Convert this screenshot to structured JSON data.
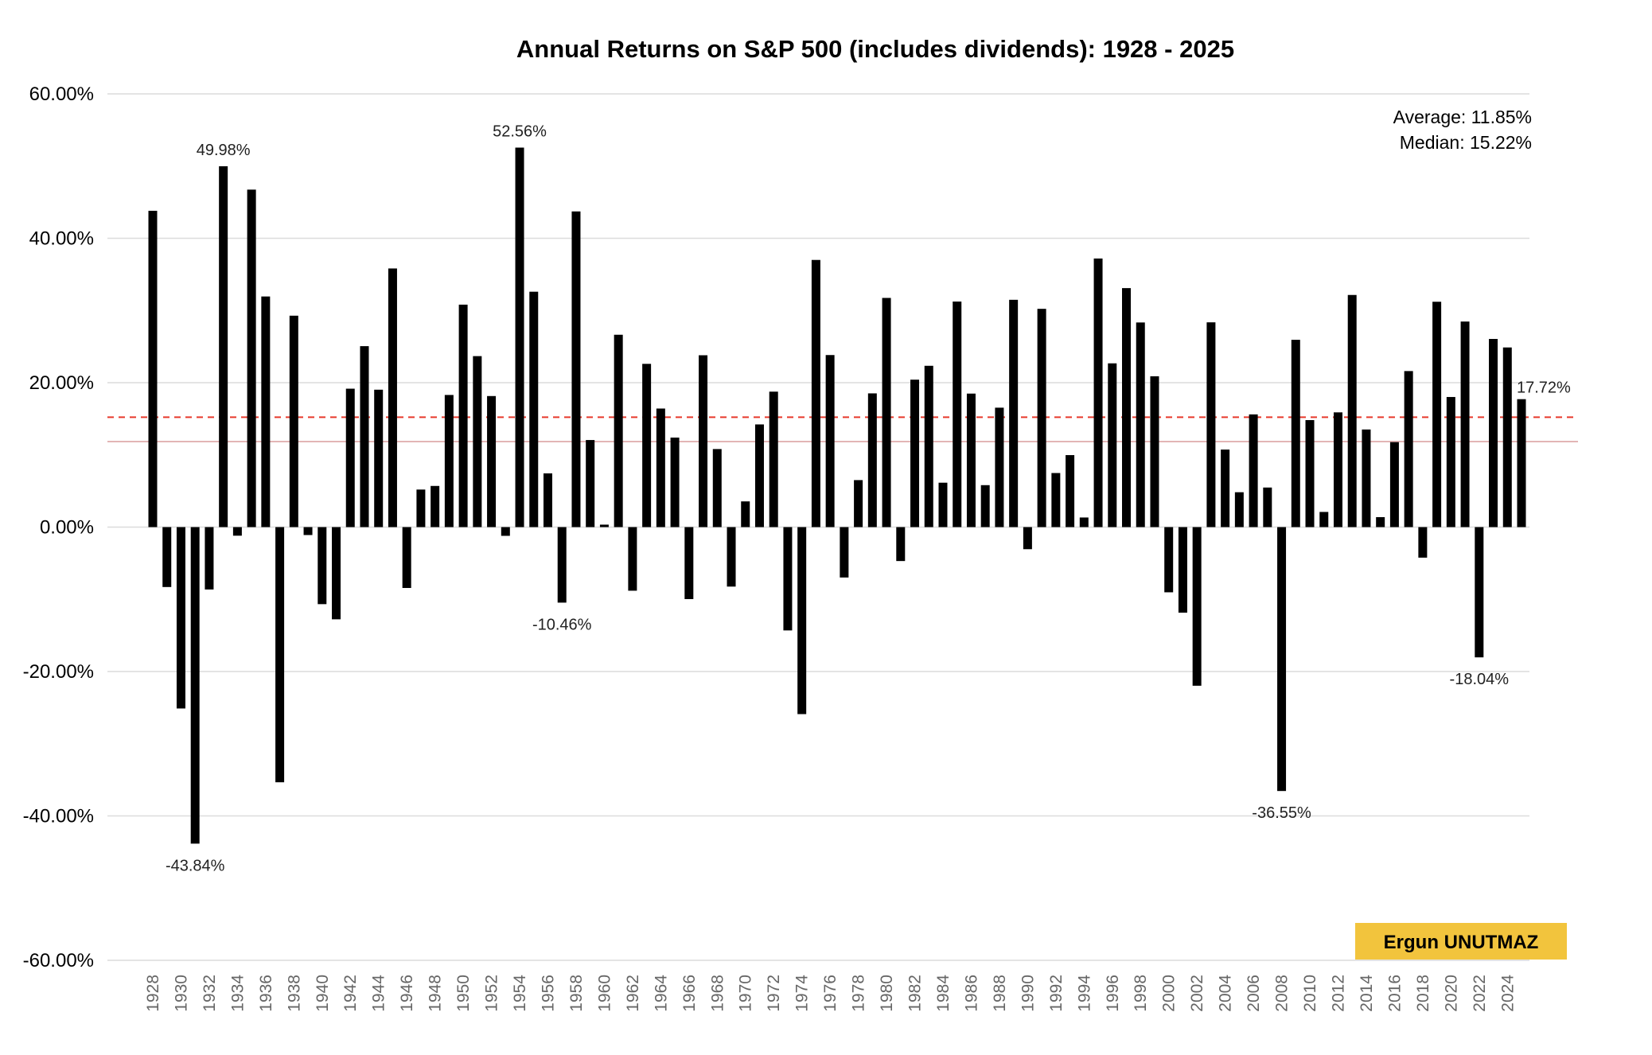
{
  "chart_data": {
    "type": "bar",
    "title": "Annual Returns on S&P 500 (includes dividends): 1928 - 2025",
    "xlabel": "",
    "ylabel": "",
    "ylim": [
      -60,
      60
    ],
    "yticks": [
      -60,
      -40,
      -20,
      0,
      20,
      40,
      60
    ],
    "ytick_labels": [
      "-60.00%",
      "-40.00%",
      "-20.00%",
      "0.00%",
      "20.00%",
      "40.00%",
      "60.00%"
    ],
    "grid": true,
    "bar_color": "#000000",
    "x": [
      1928,
      1929,
      1930,
      1931,
      1932,
      1933,
      1934,
      1935,
      1936,
      1937,
      1938,
      1939,
      1940,
      1941,
      1942,
      1943,
      1944,
      1945,
      1946,
      1947,
      1948,
      1949,
      1950,
      1951,
      1952,
      1953,
      1954,
      1955,
      1956,
      1957,
      1958,
      1959,
      1960,
      1961,
      1962,
      1963,
      1964,
      1965,
      1966,
      1967,
      1968,
      1969,
      1970,
      1971,
      1972,
      1973,
      1974,
      1975,
      1976,
      1977,
      1978,
      1979,
      1980,
      1981,
      1982,
      1983,
      1984,
      1985,
      1986,
      1987,
      1988,
      1989,
      1990,
      1991,
      1992,
      1993,
      1994,
      1995,
      1996,
      1997,
      1998,
      1999,
      2000,
      2001,
      2002,
      2003,
      2004,
      2005,
      2006,
      2007,
      2008,
      2009,
      2010,
      2011,
      2012,
      2013,
      2014,
      2015,
      2016,
      2017,
      2018,
      2019,
      2020,
      2021,
      2022,
      2023,
      2024,
      2025
    ],
    "values": [
      43.81,
      -8.3,
      -25.12,
      -43.84,
      -8.64,
      49.98,
      -1.19,
      46.74,
      31.94,
      -35.34,
      29.28,
      -1.1,
      -10.67,
      -12.77,
      19.17,
      25.06,
      19.03,
      35.82,
      -8.43,
      5.2,
      5.7,
      18.3,
      30.81,
      23.68,
      18.15,
      -1.21,
      52.56,
      32.6,
      7.44,
      -10.46,
      43.72,
      12.06,
      0.34,
      26.64,
      -8.81,
      22.61,
      16.42,
      12.4,
      -9.97,
      23.8,
      10.81,
      -8.24,
      3.56,
      14.22,
      18.76,
      -14.31,
      -25.9,
      37.0,
      23.83,
      -6.98,
      6.51,
      18.52,
      31.74,
      -4.7,
      20.42,
      22.34,
      6.15,
      31.24,
      18.49,
      5.81,
      16.54,
      31.48,
      -3.06,
      30.23,
      7.49,
      9.97,
      1.33,
      37.2,
      22.68,
      33.1,
      28.34,
      20.89,
      -9.03,
      -11.85,
      -21.97,
      28.36,
      10.74,
      4.83,
      15.61,
      5.48,
      -36.55,
      25.94,
      14.82,
      2.1,
      15.89,
      32.15,
      13.52,
      1.38,
      11.77,
      21.61,
      -4.23,
      31.21,
      18.02,
      28.47,
      -18.04,
      26.06,
      24.88,
      17.72
    ],
    "x_tick_labels": [
      "1928",
      "1930",
      "1932",
      "1934",
      "1936",
      "1938",
      "1940",
      "1942",
      "1944",
      "1946",
      "1948",
      "1950",
      "1952",
      "1954",
      "1956",
      "1958",
      "1960",
      "1962",
      "1964",
      "1966",
      "1968",
      "1970",
      "1972",
      "1974",
      "1976",
      "1978",
      "1980",
      "1982",
      "1984",
      "1986",
      "1988",
      "1990",
      "1992",
      "1994",
      "1996",
      "1998",
      "2000",
      "2002",
      "2004",
      "2006",
      "2008",
      "2010",
      "2012",
      "2014",
      "2016",
      "2018",
      "2020",
      "2022",
      "2024"
    ],
    "reference_lines": [
      {
        "name": "average",
        "value": 11.85,
        "style": "solid",
        "color": "#e3b5b5"
      },
      {
        "name": "median",
        "value": 15.22,
        "style": "dashed",
        "color": "#e8392b"
      }
    ],
    "stats": {
      "average_label": "Average: 11.85%",
      "median_label": "Median: 15.22%"
    },
    "annotations": [
      {
        "year": 1933,
        "text": "49.98%",
        "pos": "above"
      },
      {
        "year": 1954,
        "text": "52.56%",
        "pos": "above"
      },
      {
        "year": 1931,
        "text": "-43.84%",
        "pos": "below"
      },
      {
        "year": 1957,
        "text": "-10.46%",
        "pos": "below"
      },
      {
        "year": 2008,
        "text": "-36.55%",
        "pos": "below"
      },
      {
        "year": 2022,
        "text": "-18.04%",
        "pos": "below"
      },
      {
        "year": 2025,
        "text": "17.72%",
        "pos": "right"
      }
    ]
  },
  "watermark": {
    "text": "Ergun UNUTMAZ",
    "color": "#f2c43d"
  }
}
